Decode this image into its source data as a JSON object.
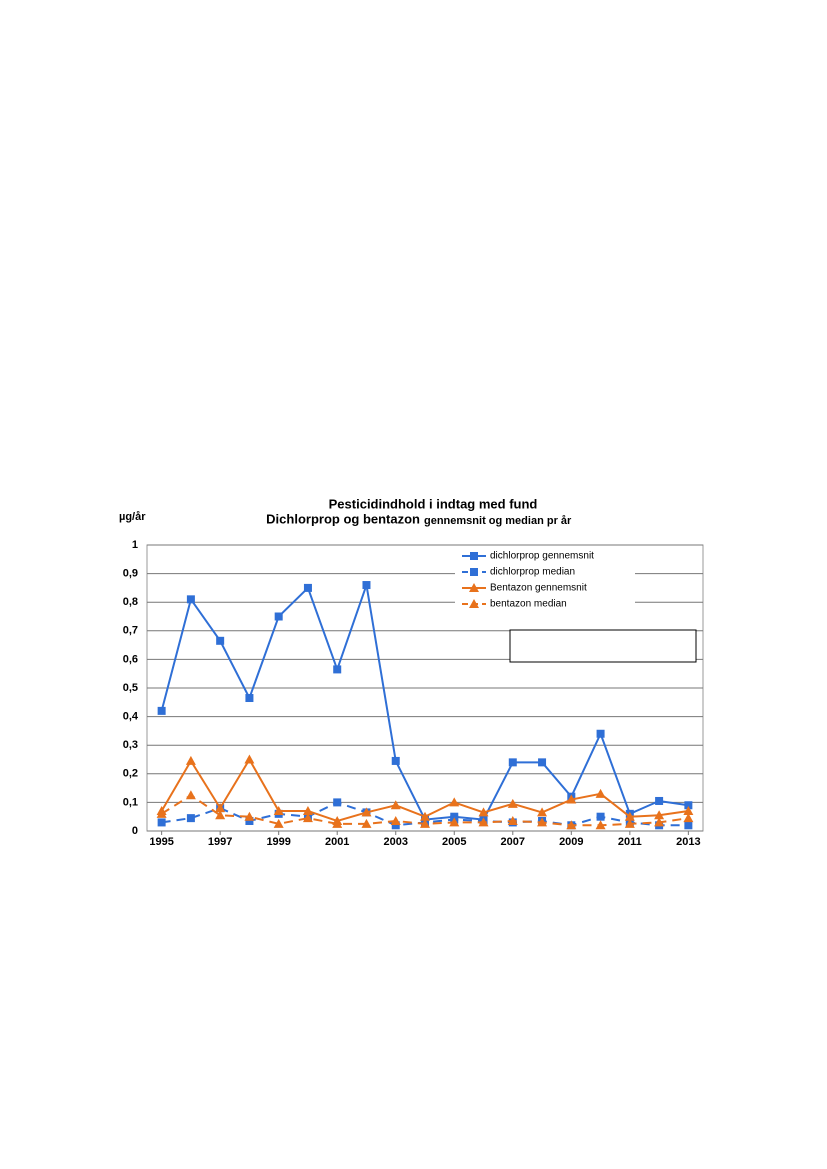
{
  "chart_data": {
    "type": "line",
    "title": "Pesticidindhold i indtag med fund",
    "subtitle": "Dichlorprop og bentazon",
    "subtitle_note": "gennemsnit og median pr år",
    "y_label": "µg/år",
    "x": [
      1995,
      1996,
      1997,
      1998,
      1999,
      2000,
      2001,
      2002,
      2003,
      2004,
      2005,
      2006,
      2007,
      2008,
      2009,
      2010,
      2011,
      2012,
      2013
    ],
    "xlim": [
      1994.5,
      2013.5
    ],
    "xticks": [
      1995,
      1997,
      1999,
      2001,
      2003,
      2005,
      2007,
      2009,
      2011,
      2013
    ],
    "ylim": [
      0,
      1
    ],
    "yticks": [
      0,
      {
        "value": 0.1,
        "label": "0,1"
      },
      {
        "value": 0.2,
        "label": "0,2"
      },
      {
        "value": 0.3,
        "label": "0,3"
      },
      {
        "value": 0.4,
        "label": "0,4"
      },
      {
        "value": 0.5,
        "label": "0,5"
      },
      {
        "value": 0.6,
        "label": "0,6"
      },
      {
        "value": 0.7,
        "label": "0,7"
      },
      {
        "value": 0.8,
        "label": "0,8"
      },
      {
        "value": 0.9,
        "label": "0,9"
      },
      1
    ],
    "grid": true,
    "legend": "top-right",
    "series": [
      {
        "name": "dichlorprop gennemsnit",
        "color": "#2f6fd6",
        "marker": "square",
        "dash": false,
        "values": [
          0.42,
          0.81,
          0.665,
          0.465,
          0.75,
          0.85,
          0.565,
          0.86,
          0.245,
          0.04,
          0.05,
          0.04,
          0.24,
          0.24,
          0.12,
          0.34,
          0.06,
          0.105,
          0.09
        ]
      },
      {
        "name": "dichlorprop median",
        "color": "#2f6fd6",
        "marker": "square",
        "dash": true,
        "values": [
          0.03,
          0.045,
          0.08,
          0.035,
          0.06,
          0.05,
          0.1,
          0.065,
          0.02,
          0.03,
          0.04,
          0.035,
          0.03,
          0.035,
          0.02,
          0.05,
          0.03,
          0.02,
          0.02
        ]
      },
      {
        "name": "Bentazon gennemsnit",
        "color": "#e8721c",
        "marker": "triangle",
        "dash": false,
        "values": [
          0.07,
          0.245,
          0.08,
          0.25,
          0.07,
          0.07,
          0.035,
          0.065,
          0.09,
          0.05,
          0.1,
          0.065,
          0.095,
          0.065,
          0.11,
          0.13,
          0.05,
          0.055,
          0.07
        ]
      },
      {
        "name": "bentazon median",
        "color": "#e8721c",
        "marker": "triangle",
        "dash": true,
        "values": [
          0.06,
          0.125,
          0.055,
          0.05,
          0.025,
          0.045,
          0.025,
          0.025,
          0.035,
          0.025,
          0.03,
          0.03,
          0.035,
          0.03,
          0.02,
          0.02,
          0.025,
          0.03,
          0.045
        ]
      }
    ]
  }
}
